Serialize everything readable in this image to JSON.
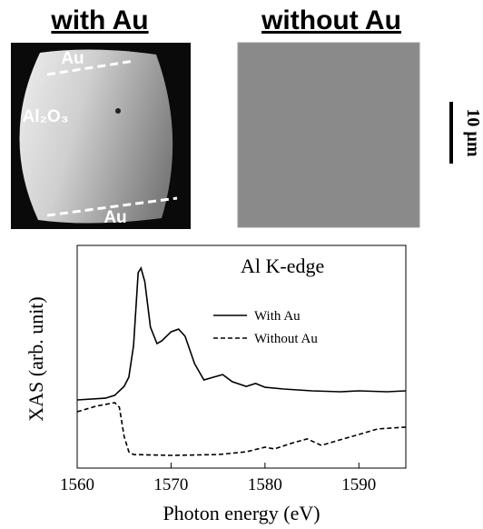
{
  "panels": {
    "left_title": "with Au",
    "right_title": "without Au",
    "top_label": "Au",
    "middle_label": "Al₂O₃",
    "bottom_label": "Au",
    "scale_bar": "10 µm"
  },
  "chart_data": {
    "type": "line",
    "annotation": "Al K-edge",
    "x_label": "Photon energy (eV)",
    "y_label": "XAS (arb. unit)",
    "xlim": [
      1560,
      1595
    ],
    "xticks": [
      1560,
      1570,
      1580,
      1590
    ],
    "ylim": [
      0,
      10
    ],
    "series": [
      {
        "name": "With Au",
        "color": "#000000",
        "linestyle": "solid",
        "x": [
          1560,
          1563,
          1564,
          1565,
          1565.5,
          1566,
          1566.5,
          1566.8,
          1567.2,
          1567.8,
          1568.5,
          1569,
          1570,
          1570.8,
          1571.5,
          1572.5,
          1573.5,
          1574.5,
          1575.5,
          1576.5,
          1578,
          1579,
          1580,
          1582,
          1585,
          1588,
          1590,
          1593,
          1595
        ],
        "values": [
          3.06,
          3.14,
          3.27,
          3.67,
          4.08,
          5.5,
          8.78,
          8.98,
          8.37,
          6.33,
          5.59,
          5.71,
          6.12,
          6.24,
          5.92,
          4.69,
          3.96,
          4.08,
          4.2,
          3.88,
          3.67,
          3.8,
          3.63,
          3.55,
          3.47,
          3.43,
          3.47,
          3.43,
          3.47
        ]
      },
      {
        "name": "Without Au",
        "color": "#000000",
        "linestyle": "dashed",
        "x": [
          1560,
          1562,
          1564,
          1564.5,
          1565,
          1565.5,
          1566,
          1570,
          1575,
          1578,
          1580,
          1581,
          1583,
          1584.5,
          1586,
          1588,
          1590,
          1592,
          1595
        ],
        "values": [
          2.53,
          2.78,
          2.94,
          2.73,
          1.43,
          0.73,
          0.61,
          0.57,
          0.61,
          0.73,
          0.94,
          0.86,
          1.14,
          1.31,
          1.02,
          1.27,
          1.51,
          1.76,
          1.84
        ]
      }
    ]
  }
}
